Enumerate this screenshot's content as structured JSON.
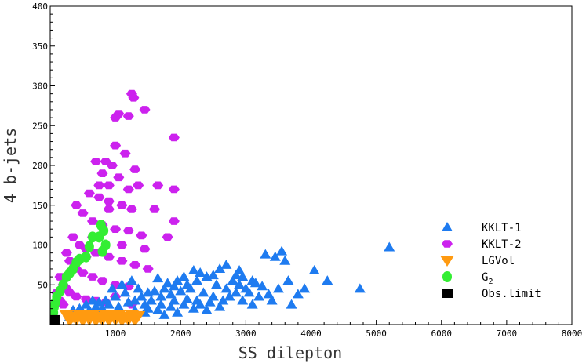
{
  "colors": {
    "kklt1": "#1e7bf0",
    "kklt2": "#cc22ee",
    "lgvol": "#ff9a10",
    "g2": "#33ee33",
    "obs": "#000000"
  },
  "chart_data": {
    "type": "scatter",
    "xlabel": "SS dilepton",
    "ylabel": "4 b-jets",
    "xlim": [
      0,
      8000
    ],
    "ylim": [
      0,
      400
    ],
    "x_ticks": [
      "1000",
      "2000",
      "3000",
      "4000",
      "5000",
      "6000",
      "7000",
      "8000"
    ],
    "y_ticks": [
      "50",
      "100",
      "150",
      "200",
      "250",
      "300",
      "350",
      "400"
    ],
    "legend_position": "right",
    "legend": [
      "KKLT-1",
      "KKLT-2",
      "LGVol",
      "G2",
      "Obs.limit"
    ],
    "series": [
      {
        "name": "KKLT-1",
        "marker": "triangle-up",
        "color": "#1e7bf0",
        "points": [
          [
            5200,
            97
          ],
          [
            4750,
            45
          ],
          [
            4050,
            68
          ],
          [
            4250,
            55
          ],
          [
            3900,
            45
          ],
          [
            3800,
            38
          ],
          [
            3650,
            55
          ],
          [
            3550,
            92
          ],
          [
            3600,
            80
          ],
          [
            3450,
            85
          ],
          [
            3300,
            88
          ],
          [
            3250,
            48
          ],
          [
            3150,
            52
          ],
          [
            3000,
            45
          ],
          [
            2950,
            60
          ],
          [
            2900,
            68
          ],
          [
            2800,
            55
          ],
          [
            2700,
            75
          ],
          [
            2600,
            70
          ],
          [
            2550,
            50
          ],
          [
            2500,
            62
          ],
          [
            2400,
            60
          ],
          [
            2350,
            40
          ],
          [
            2300,
            65
          ],
          [
            2250,
            55
          ],
          [
            2200,
            68
          ],
          [
            2150,
            45
          ],
          [
            2100,
            50
          ],
          [
            2050,
            60
          ],
          [
            2000,
            42
          ],
          [
            1950,
            55
          ],
          [
            1900,
            48
          ],
          [
            1850,
            38
          ],
          [
            1800,
            52
          ],
          [
            1750,
            45
          ],
          [
            1700,
            35
          ],
          [
            1650,
            58
          ],
          [
            1600,
            42
          ],
          [
            1550,
            30
          ],
          [
            1500,
            40
          ],
          [
            1450,
            25
          ],
          [
            1400,
            35
          ],
          [
            1350,
            45
          ],
          [
            1300,
            30
          ],
          [
            1250,
            55
          ],
          [
            1200,
            28
          ],
          [
            1150,
            40
          ],
          [
            1100,
            50
          ],
          [
            1050,
            22
          ],
          [
            1000,
            35
          ],
          [
            950,
            45
          ],
          [
            900,
            25
          ],
          [
            850,
            30
          ],
          [
            800,
            20
          ],
          [
            750,
            28
          ],
          [
            700,
            22
          ],
          [
            650,
            30
          ],
          [
            600,
            18
          ],
          [
            550,
            25
          ],
          [
            500,
            15
          ],
          [
            450,
            20
          ],
          [
            400,
            12
          ],
          [
            350,
            18
          ],
          [
            300,
            10
          ],
          [
            3700,
            25
          ],
          [
            3400,
            30
          ],
          [
            3200,
            35
          ],
          [
            3100,
            25
          ],
          [
            2850,
            40
          ],
          [
            2650,
            30
          ],
          [
            2450,
            28
          ],
          [
            2250,
            30
          ],
          [
            2050,
            25
          ],
          [
            1850,
            22
          ],
          [
            1650,
            18
          ],
          [
            1450,
            15
          ],
          [
            1250,
            12
          ],
          [
            2750,
            35
          ],
          [
            2950,
            30
          ],
          [
            3050,
            40
          ],
          [
            3350,
            38
          ],
          [
            3500,
            45
          ],
          [
            2200,
            20
          ],
          [
            1950,
            15
          ],
          [
            1750,
            12
          ],
          [
            2600,
            22
          ],
          [
            2400,
            18
          ],
          [
            2100,
            32
          ],
          [
            1900,
            30
          ],
          [
            1700,
            25
          ],
          [
            1500,
            20
          ],
          [
            1300,
            18
          ],
          [
            1100,
            15
          ],
          [
            900,
            12
          ],
          [
            2300,
            25
          ],
          [
            2500,
            35
          ],
          [
            2700,
            45
          ],
          [
            2900,
            50
          ],
          [
            3100,
            55
          ],
          [
            2850,
            62
          ]
        ]
      },
      {
        "name": "KKLT-2",
        "marker": "hexagon",
        "color": "#cc22ee",
        "points": [
          [
            1250,
            290
          ],
          [
            1280,
            285
          ],
          [
            1450,
            270
          ],
          [
            1000,
            260
          ],
          [
            1050,
            265
          ],
          [
            1200,
            262
          ],
          [
            1900,
            235
          ],
          [
            1000,
            225
          ],
          [
            1150,
            215
          ],
          [
            700,
            205
          ],
          [
            850,
            205
          ],
          [
            950,
            200
          ],
          [
            1300,
            195
          ],
          [
            800,
            190
          ],
          [
            1050,
            185
          ],
          [
            900,
            175
          ],
          [
            1350,
            175
          ],
          [
            1650,
            175
          ],
          [
            1900,
            170
          ],
          [
            600,
            165
          ],
          [
            750,
            160
          ],
          [
            900,
            155
          ],
          [
            1100,
            150
          ],
          [
            1250,
            145
          ],
          [
            1600,
            145
          ],
          [
            400,
            150
          ],
          [
            500,
            140
          ],
          [
            650,
            130
          ],
          [
            800,
            125
          ],
          [
            1000,
            120
          ],
          [
            1200,
            118
          ],
          [
            1400,
            112
          ],
          [
            1800,
            110
          ],
          [
            1900,
            130
          ],
          [
            350,
            110
          ],
          [
            450,
            100
          ],
          [
            550,
            95
          ],
          [
            700,
            90
          ],
          [
            900,
            85
          ],
          [
            1100,
            80
          ],
          [
            1300,
            75
          ],
          [
            1500,
            70
          ],
          [
            250,
            90
          ],
          [
            300,
            80
          ],
          [
            400,
            70
          ],
          [
            500,
            65
          ],
          [
            650,
            60
          ],
          [
            800,
            55
          ],
          [
            1000,
            50
          ],
          [
            1200,
            48
          ],
          [
            150,
            60
          ],
          [
            200,
            50
          ],
          [
            250,
            45
          ],
          [
            300,
            40
          ],
          [
            400,
            35
          ],
          [
            550,
            32
          ],
          [
            700,
            30
          ],
          [
            850,
            28
          ],
          [
            1000,
            35
          ],
          [
            1250,
            25
          ],
          [
            100,
            40
          ],
          [
            150,
            30
          ],
          [
            200,
            25
          ],
          [
            750,
            175
          ],
          [
            900,
            145
          ],
          [
            1200,
            170
          ],
          [
            1100,
            100
          ],
          [
            650,
            110
          ],
          [
            550,
            85
          ],
          [
            1450,
            95
          ]
        ]
      },
      {
        "name": "LGVol",
        "marker": "triangle-down",
        "color": "#ff9a10",
        "points": [
          [
            250,
            12
          ],
          [
            350,
            10
          ],
          [
            450,
            12
          ],
          [
            550,
            11
          ],
          [
            650,
            12
          ],
          [
            750,
            10
          ],
          [
            850,
            12
          ],
          [
            950,
            11
          ],
          [
            1050,
            12
          ],
          [
            1150,
            10
          ],
          [
            1250,
            12
          ],
          [
            1350,
            11
          ],
          [
            300,
            5
          ],
          [
            400,
            6
          ],
          [
            500,
            5
          ],
          [
            600,
            6
          ],
          [
            700,
            5
          ],
          [
            800,
            6
          ],
          [
            900,
            5
          ],
          [
            1000,
            6
          ],
          [
            1100,
            5
          ],
          [
            1200,
            6
          ],
          [
            1300,
            5
          ]
        ]
      },
      {
        "name": "G2",
        "marker": "circle",
        "color": "#33ee33",
        "points": [
          [
            780,
            125
          ],
          [
            750,
            110
          ],
          [
            820,
            118
          ],
          [
            850,
            100
          ],
          [
            800,
            92
          ],
          [
            650,
            110
          ],
          [
            600,
            98
          ],
          [
            550,
            85
          ],
          [
            450,
            82
          ],
          [
            400,
            78
          ],
          [
            350,
            70
          ],
          [
            300,
            65
          ],
          [
            250,
            60
          ],
          [
            200,
            50
          ],
          [
            150,
            42
          ],
          [
            100,
            35
          ],
          [
            80,
            28
          ],
          [
            60,
            22
          ],
          [
            50,
            15
          ],
          [
            40,
            10
          ]
        ]
      },
      {
        "name": "Obs.limit",
        "marker": "square",
        "color": "#000000",
        "points": [
          [
            60,
            6
          ]
        ]
      }
    ]
  }
}
